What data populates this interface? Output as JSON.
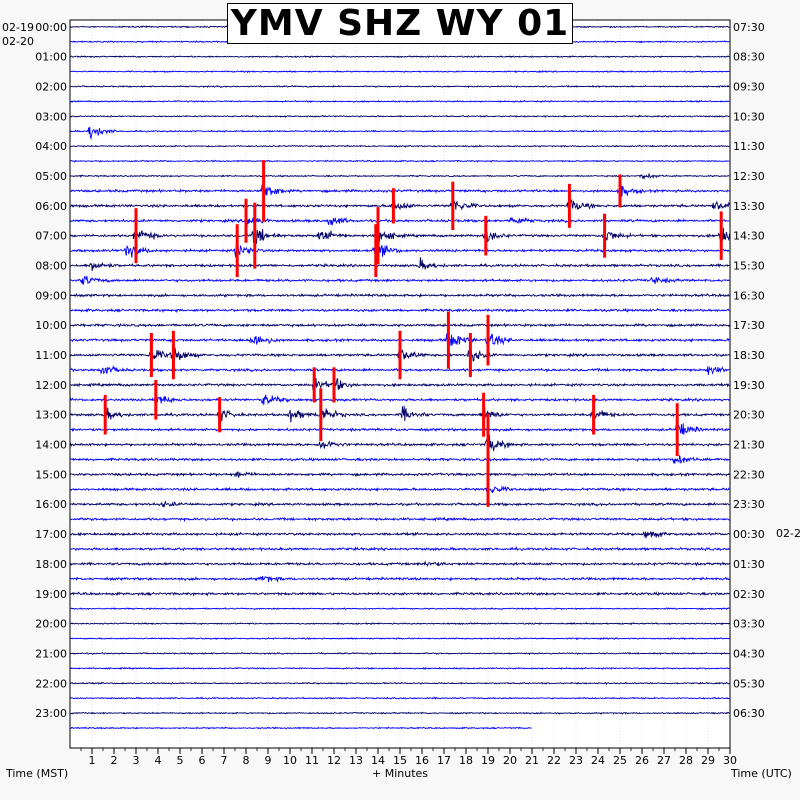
{
  "title": "YMV SHZ WY 01",
  "left_date_prev": "02-19",
  "left_date": "02-20",
  "right_date_next": "02-2",
  "left_axis_label": "Time (MST)",
  "right_axis_label": "Time (UTC)",
  "bottom_axis_label": "+ Minutes",
  "colors": {
    "background": "#f8f8f8",
    "plot": "#ffffff",
    "trace_blue": "#0000ff",
    "trace_navy": "#000066",
    "clip": "#ff0000",
    "grid": "#c8c8c8"
  },
  "chart_data": {
    "type": "line",
    "title": "YMV SHZ WY 01",
    "xlabel": "+ Minutes",
    "ylabel_left": "Time (MST)",
    "ylabel_right": "Time (UTC)",
    "xlim": [
      0,
      30
    ],
    "x_ticks": [
      1,
      2,
      3,
      4,
      5,
      6,
      7,
      8,
      9,
      10,
      11,
      12,
      13,
      14,
      15,
      16,
      17,
      18,
      19,
      20,
      21,
      22,
      23,
      24,
      25,
      26,
      27,
      28,
      29,
      30
    ],
    "left_hour_labels": [
      "00:00",
      "01:00",
      "02:00",
      "03:00",
      "04:00",
      "05:00",
      "06:00",
      "07:00",
      "08:00",
      "09:00",
      "10:00",
      "11:00",
      "12:00",
      "13:00",
      "14:00",
      "15:00",
      "16:00",
      "17:00",
      "18:00",
      "19:00",
      "20:00",
      "21:00",
      "22:00",
      "23:00"
    ],
    "right_hour_labels": [
      "07:30",
      "08:30",
      "09:30",
      "10:30",
      "11:30",
      "12:30",
      "13:30",
      "14:30",
      "15:30",
      "16:30",
      "17:30",
      "18:30",
      "19:30",
      "20:30",
      "21:30",
      "22:30",
      "23:30",
      "00:30",
      "01:30",
      "02:30",
      "03:30",
      "04:30",
      "05:30",
      "06:30"
    ],
    "trace_count": 48,
    "trace_colors_cycle": [
      "#000066",
      "#0000ff"
    ],
    "last_trace_end_minute": 21,
    "activity_band": [
      11,
      38
    ],
    "events": [
      {
        "trace": 7,
        "minute": 0.9,
        "amp": 2.2,
        "clip": false
      },
      {
        "trace": 10,
        "minute": 26.0,
        "amp": 0.8,
        "clip": false
      },
      {
        "trace": 11,
        "minute": 8.8,
        "amp": 2.8,
        "clip": true
      },
      {
        "trace": 11,
        "minute": 25.0,
        "amp": 1.5,
        "clip": true
      },
      {
        "trace": 12,
        "minute": 14.7,
        "amp": 1.6,
        "clip": true
      },
      {
        "trace": 12,
        "minute": 17.4,
        "amp": 2.2,
        "clip": true
      },
      {
        "trace": 12,
        "minute": 22.7,
        "amp": 2.0,
        "clip": true
      },
      {
        "trace": 12,
        "minute": 29.3,
        "amp": 1.6,
        "clip": false
      },
      {
        "trace": 13,
        "minute": 8.0,
        "amp": 2.0,
        "clip": true
      },
      {
        "trace": 13,
        "minute": 11.8,
        "amp": 1.5,
        "clip": false
      },
      {
        "trace": 13,
        "minute": 20.1,
        "amp": 1.2,
        "clip": false
      },
      {
        "trace": 14,
        "minute": 3.0,
        "amp": 2.5,
        "clip": true
      },
      {
        "trace": 14,
        "minute": 8.4,
        "amp": 3.0,
        "clip": true
      },
      {
        "trace": 14,
        "minute": 11.4,
        "amp": 2.2,
        "clip": false
      },
      {
        "trace": 14,
        "minute": 14.0,
        "amp": 2.6,
        "clip": true
      },
      {
        "trace": 14,
        "minute": 18.9,
        "amp": 1.8,
        "clip": true
      },
      {
        "trace": 14,
        "minute": 24.3,
        "amp": 2.0,
        "clip": true
      },
      {
        "trace": 14,
        "minute": 29.6,
        "amp": 2.2,
        "clip": true
      },
      {
        "trace": 15,
        "minute": 2.6,
        "amp": 2.0,
        "clip": false
      },
      {
        "trace": 15,
        "minute": 7.6,
        "amp": 2.4,
        "clip": true
      },
      {
        "trace": 15,
        "minute": 13.9,
        "amp": 2.4,
        "clip": true
      },
      {
        "trace": 16,
        "minute": 1.0,
        "amp": 1.4,
        "clip": false
      },
      {
        "trace": 16,
        "minute": 15.9,
        "amp": 1.4,
        "clip": false
      },
      {
        "trace": 17,
        "minute": 0.6,
        "amp": 1.4,
        "clip": false
      },
      {
        "trace": 17,
        "minute": 26.5,
        "amp": 1.0,
        "clip": false
      },
      {
        "trace": 21,
        "minute": 8.3,
        "amp": 2.4,
        "clip": false
      },
      {
        "trace": 21,
        "minute": 17.2,
        "amp": 2.6,
        "clip": true
      },
      {
        "trace": 21,
        "minute": 19.0,
        "amp": 2.3,
        "clip": true
      },
      {
        "trace": 22,
        "minute": 3.7,
        "amp": 2.0,
        "clip": true
      },
      {
        "trace": 22,
        "minute": 4.7,
        "amp": 2.2,
        "clip": true
      },
      {
        "trace": 22,
        "minute": 15.0,
        "amp": 2.2,
        "clip": true
      },
      {
        "trace": 22,
        "minute": 18.2,
        "amp": 2.0,
        "clip": true
      },
      {
        "trace": 23,
        "minute": 1.4,
        "amp": 1.6,
        "clip": false
      },
      {
        "trace": 23,
        "minute": 29.0,
        "amp": 1.2,
        "clip": false
      },
      {
        "trace": 24,
        "minute": 11.1,
        "amp": 1.6,
        "clip": true
      },
      {
        "trace": 24,
        "minute": 12.0,
        "amp": 1.6,
        "clip": true
      },
      {
        "trace": 25,
        "minute": 3.9,
        "amp": 1.8,
        "clip": true
      },
      {
        "trace": 25,
        "minute": 8.8,
        "amp": 1.6,
        "clip": false
      },
      {
        "trace": 26,
        "minute": 1.6,
        "amp": 1.8,
        "clip": true
      },
      {
        "trace": 26,
        "minute": 6.8,
        "amp": 1.6,
        "clip": true
      },
      {
        "trace": 26,
        "minute": 10.0,
        "amp": 1.8,
        "clip": false
      },
      {
        "trace": 26,
        "minute": 11.4,
        "amp": 2.4,
        "clip": true
      },
      {
        "trace": 26,
        "minute": 15.1,
        "amp": 2.0,
        "clip": false
      },
      {
        "trace": 26,
        "minute": 18.8,
        "amp": 2.0,
        "clip": true
      },
      {
        "trace": 26,
        "minute": 23.8,
        "amp": 1.8,
        "clip": true
      },
      {
        "trace": 27,
        "minute": 27.6,
        "amp": 2.4,
        "clip": true
      },
      {
        "trace": 28,
        "minute": 11.4,
        "amp": 1.6,
        "clip": false
      },
      {
        "trace": 28,
        "minute": 19.0,
        "amp": 2.8,
        "clip": true
      },
      {
        "trace": 29,
        "minute": 27.5,
        "amp": 1.4,
        "clip": false
      },
      {
        "trace": 30,
        "minute": 7.6,
        "amp": 0.8,
        "clip": false
      },
      {
        "trace": 31,
        "minute": 19.0,
        "amp": 1.6,
        "clip": true
      },
      {
        "trace": 32,
        "minute": 4.2,
        "amp": 0.7,
        "clip": false
      },
      {
        "trace": 34,
        "minute": 26.2,
        "amp": 1.4,
        "clip": false
      },
      {
        "trace": 36,
        "minute": 16.2,
        "amp": 0.7,
        "clip": false
      },
      {
        "trace": 37,
        "minute": 8.7,
        "amp": 1.0,
        "clip": false
      }
    ]
  }
}
